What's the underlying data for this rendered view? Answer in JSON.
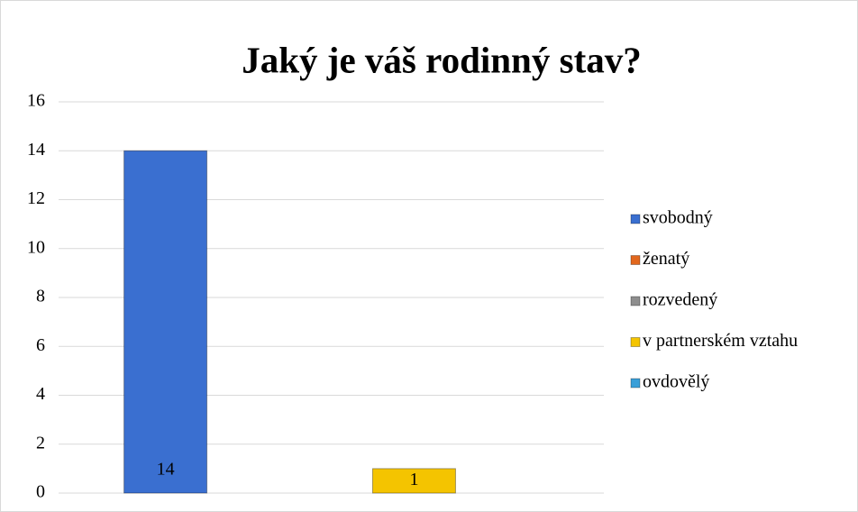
{
  "chart_data": {
    "type": "bar",
    "title": "Jaký je váš rodinný stav?",
    "categories": [
      null
    ],
    "series": [
      {
        "name": "svobodný",
        "color": "#3a6fd0",
        "values": [
          14
        ]
      },
      {
        "name": "ženatý",
        "color": "#e2671d",
        "values": [
          0
        ]
      },
      {
        "name": "rozvedený",
        "color": "#8e8e8e",
        "values": [
          0
        ]
      },
      {
        "name": "v partnerském vztahu",
        "color": "#f4c400",
        "values": [
          1
        ]
      },
      {
        "name": "ovdovělý",
        "color": "#3a9fd8",
        "values": [
          0
        ]
      }
    ],
    "ylim": [
      0,
      16
    ],
    "yticks": [
      0,
      2,
      4,
      6,
      8,
      10,
      12,
      14,
      16
    ],
    "grid": true,
    "legend": "right"
  }
}
